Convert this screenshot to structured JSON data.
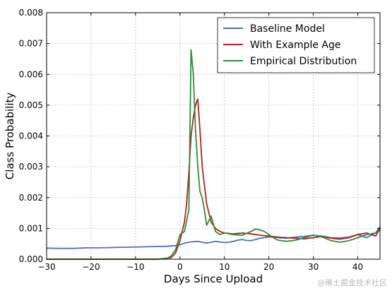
{
  "chart_data": {
    "type": "line",
    "xlabel": "Days Since Upload",
    "ylabel": "Class Probability",
    "xlim": [
      -30,
      45
    ],
    "ylim": [
      0,
      0.008
    ],
    "xticks": [
      -30,
      -20,
      -10,
      0,
      10,
      20,
      30,
      40
    ],
    "yticks": [
      0.0,
      0.001,
      0.002,
      0.003,
      0.004,
      0.005,
      0.006,
      0.007,
      0.008
    ],
    "ytick_labels": [
      "0.000",
      "0.001",
      "0.002",
      "0.003",
      "0.004",
      "0.005",
      "0.006",
      "0.007",
      "0.008"
    ],
    "grid": true,
    "legend_position": "top-right",
    "series": [
      {
        "name": "Baseline Model",
        "color": "#4c72b0",
        "x": [
          -30,
          -27,
          -24,
          -21,
          -18,
          -15,
          -12,
          -9,
          -6,
          -3,
          -1,
          0,
          1,
          2,
          3,
          4,
          5,
          6,
          7,
          8,
          9,
          10,
          11,
          12,
          13,
          14,
          15,
          16,
          17,
          18,
          19,
          20,
          22,
          24,
          26,
          28,
          30,
          32,
          34,
          36,
          38,
          40,
          42,
          44,
          45
        ],
        "y": [
          0.00036,
          0.00035,
          0.00035,
          0.00037,
          0.00037,
          0.00038,
          0.00039,
          0.0004,
          0.00041,
          0.00042,
          0.00044,
          0.00047,
          0.00052,
          0.00055,
          0.00057,
          0.00058,
          0.00055,
          0.00052,
          0.00055,
          0.00058,
          0.00056,
          0.00054,
          0.00055,
          0.00058,
          0.00062,
          0.00064,
          0.00061,
          0.0006,
          0.00064,
          0.00068,
          0.0007,
          0.00072,
          0.0007,
          0.00068,
          0.00072,
          0.00074,
          0.00078,
          0.00075,
          0.0007,
          0.00069,
          0.00072,
          0.0008,
          0.0007,
          0.00085,
          0.00095
        ]
      },
      {
        "name": "With Example Age",
        "color": "#b22222",
        "x": [
          -30,
          -10,
          -5,
          -2,
          -1,
          0,
          1,
          1.5,
          2,
          2.5,
          3,
          3.5,
          4,
          4.5,
          5,
          6,
          7,
          8,
          9,
          10,
          12,
          14,
          16,
          18,
          20,
          22,
          24,
          26,
          28,
          30,
          32,
          34,
          36,
          38,
          40,
          42,
          44,
          45
        ],
        "y": [
          0,
          0,
          0,
          5e-05,
          0.0002,
          0.0006,
          0.0012,
          0.0018,
          0.0028,
          0.004,
          0.0046,
          0.005,
          0.0052,
          0.0042,
          0.003,
          0.0018,
          0.0012,
          0.001,
          0.0009,
          0.00085,
          0.00082,
          0.00085,
          0.00082,
          0.00078,
          0.00075,
          0.00072,
          0.0007,
          0.00068,
          0.00066,
          0.0007,
          0.00074,
          0.00068,
          0.00065,
          0.0007,
          0.0008,
          0.00085,
          0.00075,
          0.001
        ]
      },
      {
        "name": "Empirical Distribution",
        "color": "#2e8b3a",
        "x": [
          -30,
          -10,
          -5,
          -3,
          -2,
          -1,
          0,
          1,
          2,
          2.5,
          3,
          3.5,
          4,
          4.5,
          5,
          5.5,
          6,
          7,
          8,
          9,
          10,
          12,
          14,
          16,
          17,
          18,
          19,
          20,
          21,
          22,
          24,
          26,
          28,
          30,
          32,
          34,
          36,
          38,
          40,
          42,
          44,
          45
        ],
        "y": [
          0,
          0,
          0,
          2e-05,
          0.0001,
          0.0003,
          0.0008,
          0.0009,
          0.0016,
          0.0068,
          0.006,
          0.0042,
          0.003,
          0.0022,
          0.002,
          0.0016,
          0.0011,
          0.0014,
          0.0009,
          0.0008,
          0.00085,
          0.0008,
          0.00078,
          0.0009,
          0.00098,
          0.00095,
          0.0009,
          0.0008,
          0.0007,
          0.00062,
          0.00058,
          0.00062,
          0.0007,
          0.00078,
          0.00072,
          0.0006,
          0.00055,
          0.0006,
          0.0007,
          0.0008,
          0.00085,
          0.00105
        ]
      }
    ]
  },
  "watermark": "@稀土掘金技术社区"
}
